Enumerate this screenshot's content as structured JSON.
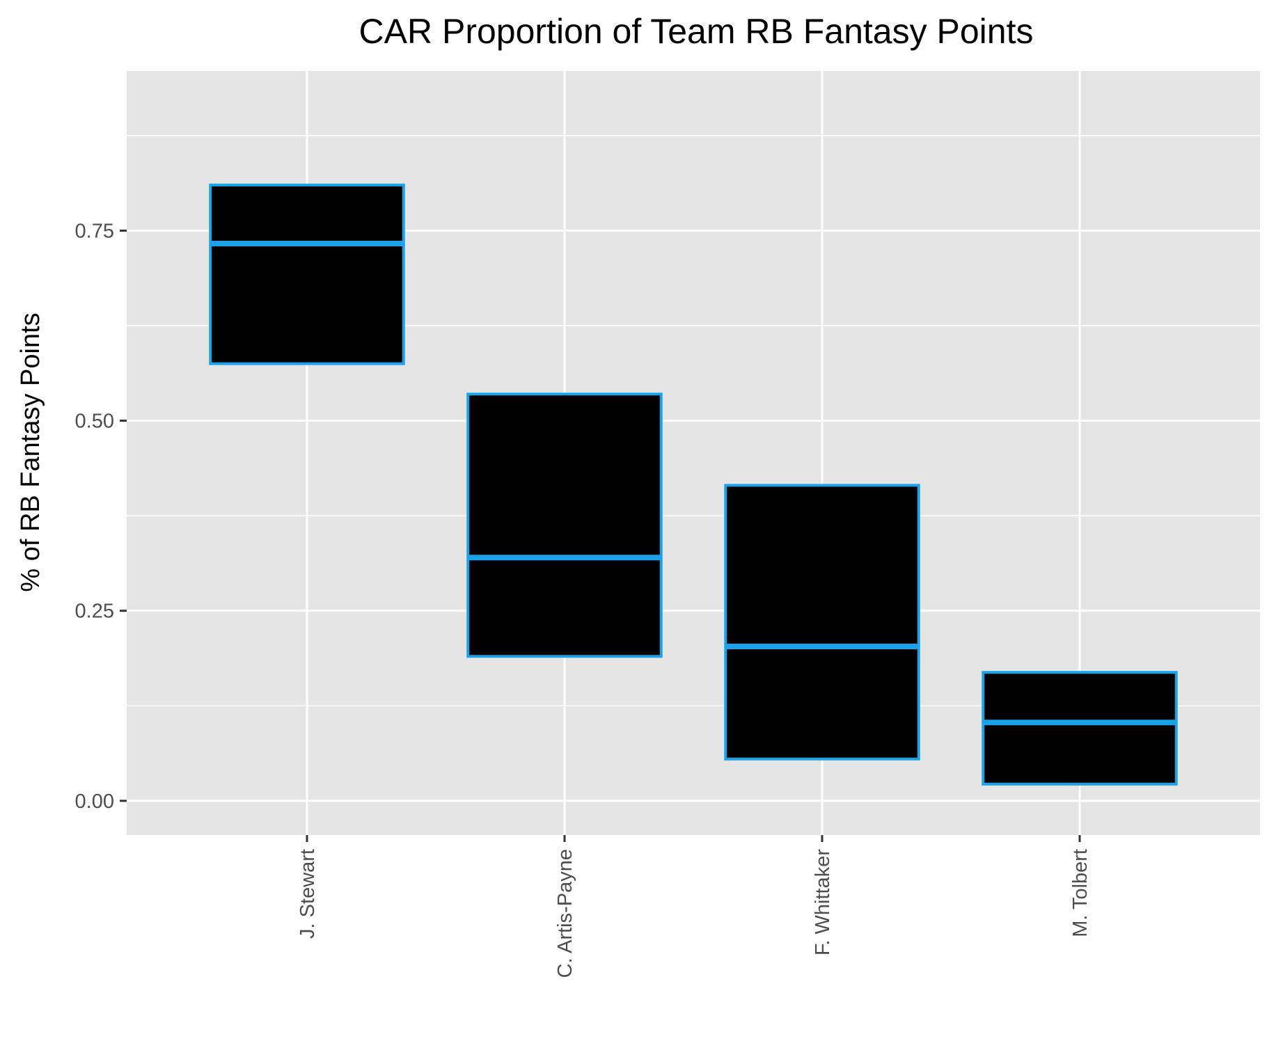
{
  "chart_data": {
    "type": "boxplot",
    "title": "CAR Proportion of Team RB Fantasy Points",
    "xlabel": "",
    "ylabel": "% of RB Fantasy Points",
    "categories": [
      "J. Stewart",
      "C. Artis-Payne",
      "F. Whittaker",
      "M. Tolbert"
    ],
    "series": [
      {
        "boxes": [
          {
            "category": "J. Stewart",
            "lower": 0.575,
            "median": 0.733,
            "upper": 0.81
          },
          {
            "category": "C. Artis-Payne",
            "lower": 0.19,
            "median": 0.32,
            "upper": 0.535
          },
          {
            "category": "F. Whittaker",
            "lower": 0.055,
            "median": 0.203,
            "upper": 0.415
          },
          {
            "category": "M. Tolbert",
            "lower": 0.022,
            "median": 0.103,
            "upper": 0.169
          }
        ]
      }
    ],
    "yticks": [
      "0.00",
      "0.25",
      "0.50",
      "0.75"
    ],
    "ytick_values": [
      0,
      0.25,
      0.5,
      0.75
    ],
    "ylim": [
      -0.045,
      0.96
    ],
    "grid": true,
    "legend": "none",
    "colors": {
      "panel_background": "#e5e5e5",
      "grid": "#ffffff",
      "box_fill": "#000000",
      "box_outline": "#1aa3e8",
      "tick_text": "#4d4d4d",
      "text": "#000000"
    }
  }
}
